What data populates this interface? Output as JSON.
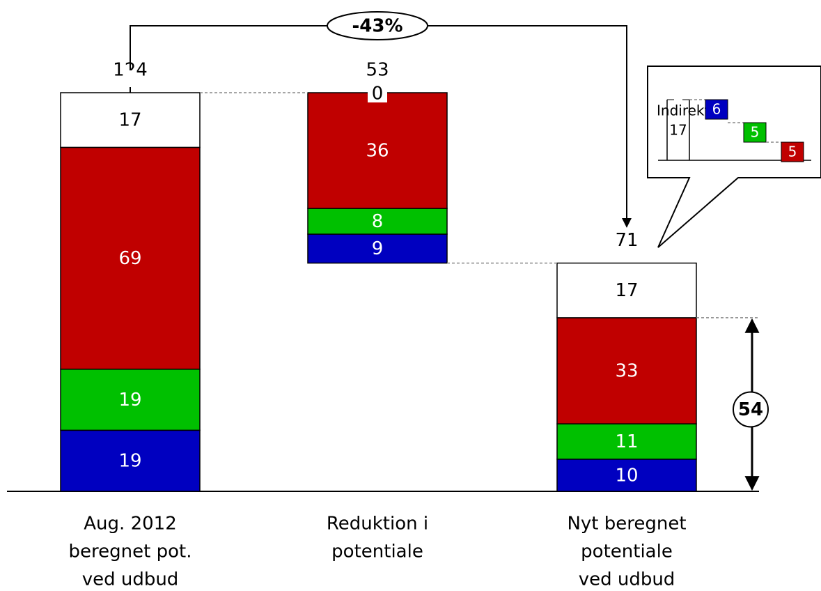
{
  "chart_data": {
    "type": "waterfall",
    "categories": [
      [
        "Aug. 2012",
        "beregnet pot.",
        "ved udbud"
      ],
      [
        "Reduktion i",
        "potentiale"
      ],
      [
        "Nyt beregnet",
        "potentiale",
        "ved udbud"
      ]
    ],
    "series": [
      {
        "color": "#0000c0",
        "values": [
          19,
          9,
          10
        ]
      },
      {
        "color": "#00c000",
        "values": [
          19,
          8,
          11
        ]
      },
      {
        "color": "#c00000",
        "values": [
          69,
          36,
          33
        ]
      },
      {
        "color": "#ffffff",
        "values": [
          17,
          0,
          17
        ]
      }
    ],
    "totals": [
      124,
      53,
      71
    ],
    "change_label": "-43%",
    "bracket_label": "54",
    "inset": {
      "title": "Indirekte:",
      "total": 17,
      "values": [
        6,
        5,
        5
      ],
      "colors": [
        "#0000c0",
        "#00c000",
        "#c00000"
      ]
    }
  }
}
